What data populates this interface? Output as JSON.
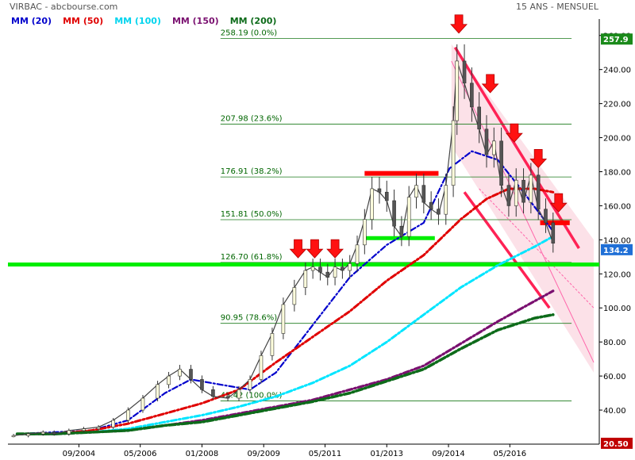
{
  "header": {
    "left": "VIRBAC - abcbourse.com",
    "right": "15 ANS - MENSUEL"
  },
  "colors": {
    "mm20": "#0000cc",
    "mm50": "#e00000",
    "mm100": "#00e5ff",
    "mm150": "#7a1070",
    "mm200": "#0d6b1a",
    "fib_line": "#1a7a1a",
    "support": "#00ee00",
    "resistance": "#ff0000",
    "channel_fill": "#f9c9d6",
    "channel_line": "#ff2255",
    "last_price_bg": "#1f6fd6",
    "high_price_bg": "#1a8a1a",
    "low_price_bg": "#c00000"
  },
  "chart_data": {
    "type": "line",
    "title": "VIRBAC - abcbourse.com",
    "xlabel": "",
    "ylabel": "",
    "ylim": [
      20,
      265
    ],
    "xlim": [
      2002.75,
      2018.75
    ],
    "x_ticks": [
      {
        "label": "09/2004",
        "x": 2004.67
      },
      {
        "label": "05/2006",
        "x": 2006.33
      },
      {
        "label": "01/2008",
        "x": 2008.0
      },
      {
        "label": "09/2009",
        "x": 2009.67
      },
      {
        "label": "05/2011",
        "x": 2011.33
      },
      {
        "label": "01/2013",
        "x": 2013.0
      },
      {
        "label": "09/2014",
        "x": 2014.67
      },
      {
        "label": "05/2016",
        "x": 2016.33
      }
    ],
    "y_ticks": [
      40,
      60,
      80,
      100,
      120,
      140,
      160,
      180,
      200,
      220,
      240,
      260
    ],
    "grid": false,
    "price_labels": {
      "high": "257.9",
      "last": "134.2",
      "low": "20.50"
    },
    "price_label_values": {
      "high": 257.9,
      "last": 134.2,
      "low": 20.5
    },
    "series": [
      {
        "name": "MM (20)",
        "x": [
          2003.0,
          2004.0,
          2005.0,
          2006.0,
          2007.0,
          2007.7,
          2008.5,
          2009.3,
          2010.0,
          2011.0,
          2012.0,
          2013.0,
          2014.0,
          2014.7,
          2015.3,
          2016.0,
          2016.7,
          2017.5
        ],
        "y": [
          26,
          27,
          28,
          34,
          50,
          58,
          55,
          52,
          62,
          90,
          118,
          137,
          150,
          182,
          192,
          187,
          168,
          145
        ]
      },
      {
        "name": "MM (50)",
        "x": [
          2003.0,
          2004.0,
          2005.0,
          2006.0,
          2007.0,
          2008.0,
          2009.0,
          2010.0,
          2011.0,
          2012.0,
          2013.0,
          2014.0,
          2015.0,
          2015.7,
          2016.3,
          2017.0,
          2017.5
        ],
        "y": [
          26,
          26,
          28,
          32,
          38,
          44,
          52,
          68,
          83,
          98,
          116,
          131,
          152,
          164,
          170,
          170,
          168
        ]
      },
      {
        "name": "MM (100)",
        "x": [
          2003.0,
          2004.0,
          2005.0,
          2006.0,
          2007.0,
          2008.0,
          2009.0,
          2010.0,
          2011.0,
          2012.0,
          2013.0,
          2014.0,
          2015.0,
          2016.0,
          2017.0,
          2017.5
        ],
        "y": [
          26,
          26,
          27,
          29,
          33,
          37,
          42,
          48,
          56,
          66,
          80,
          96,
          112,
          125,
          136,
          142
        ]
      },
      {
        "name": "MM (150)",
        "x": [
          2003.0,
          2004.0,
          2005.0,
          2006.0,
          2007.0,
          2008.0,
          2009.0,
          2010.0,
          2011.0,
          2012.0,
          2013.0,
          2014.0,
          2015.0,
          2016.0,
          2017.0,
          2017.5
        ],
        "y": [
          26,
          26,
          27,
          28,
          31,
          34,
          38,
          42,
          46,
          52,
          58,
          66,
          79,
          92,
          104,
          110
        ]
      },
      {
        "name": "MM (200)",
        "x": [
          2003.0,
          2004.0,
          2005.0,
          2006.0,
          2007.0,
          2008.0,
          2009.0,
          2010.0,
          2011.0,
          2012.0,
          2013.0,
          2014.0,
          2015.0,
          2016.0,
          2017.0,
          2017.5
        ],
        "y": [
          26,
          26,
          27,
          28,
          31,
          33,
          37,
          41,
          45,
          50,
          57,
          64,
          76,
          87,
          94,
          96
        ]
      }
    ],
    "price": {
      "x": [
        2002.9,
        2003.3,
        2003.7,
        2004.0,
        2004.4,
        2004.8,
        2005.2,
        2005.6,
        2006.0,
        2006.4,
        2006.8,
        2007.1,
        2007.4,
        2007.7,
        2008.0,
        2008.3,
        2008.7,
        2009.0,
        2009.3,
        2009.6,
        2009.9,
        2010.2,
        2010.5,
        2010.8,
        2011.0,
        2011.2,
        2011.4,
        2011.6,
        2011.8,
        2012.0,
        2012.2,
        2012.4,
        2012.6,
        2012.8,
        2013.0,
        2013.2,
        2013.4,
        2013.6,
        2013.8,
        2014.0,
        2014.2,
        2014.4,
        2014.6,
        2014.8,
        2014.9,
        2015.1,
        2015.3,
        2015.5,
        2015.7,
        2015.9,
        2016.1,
        2016.3,
        2016.5,
        2016.7,
        2016.9,
        2017.1,
        2017.3,
        2017.5
      ],
      "y": [
        25,
        26,
        27,
        26,
        28,
        29,
        30,
        34,
        40,
        47,
        55,
        60,
        64,
        58,
        52,
        48,
        47,
        52,
        58,
        72,
        85,
        102,
        112,
        122,
        124,
        121,
        118,
        124,
        122,
        126,
        137,
        152,
        170,
        168,
        163,
        148,
        142,
        165,
        172,
        162,
        158,
        155,
        172,
        210,
        245,
        232,
        218,
        205,
        190,
        198,
        172,
        160,
        175,
        162,
        178,
        158,
        150,
        138
      ]
    },
    "fibonacci": [
      {
        "label": "258.19  (0.0%)",
        "value": 258.19
      },
      {
        "label": "207.98  (23.6%)",
        "value": 207.98
      },
      {
        "label": "176.91  (38.2%)",
        "value": 176.91
      },
      {
        "label": "151.81  (50.0%)",
        "value": 151.81
      },
      {
        "label": "126.70  (61.8%)",
        "value": 126.7
      },
      {
        "label": "90.95  (78.6%)",
        "value": 90.95
      },
      {
        "label": "45.42  (100.0%)",
        "value": 45.42
      }
    ],
    "support_levels": [
      {
        "value": 125.5,
        "x_from": 2002.75,
        "x_to": 2018.75
      },
      {
        "value": 141,
        "x_from": 2012.35,
        "x_to": 2014.3
      }
    ],
    "resistance_levels": [
      {
        "value": 179,
        "x_from": 2012.4,
        "x_to": 2014.4
      },
      {
        "value": 150,
        "x_from": 2017.15,
        "x_to": 2017.95
      }
    ],
    "arrows": [
      {
        "x": 2010.6,
        "value": 128
      },
      {
        "x": 2011.05,
        "value": 128
      },
      {
        "x": 2011.6,
        "value": 128
      },
      {
        "x": 2014.95,
        "value": 260
      },
      {
        "x": 2015.8,
        "value": 225
      },
      {
        "x": 2016.45,
        "value": 196
      },
      {
        "x": 2017.1,
        "value": 181
      },
      {
        "x": 2017.65,
        "value": 155
      }
    ]
  }
}
